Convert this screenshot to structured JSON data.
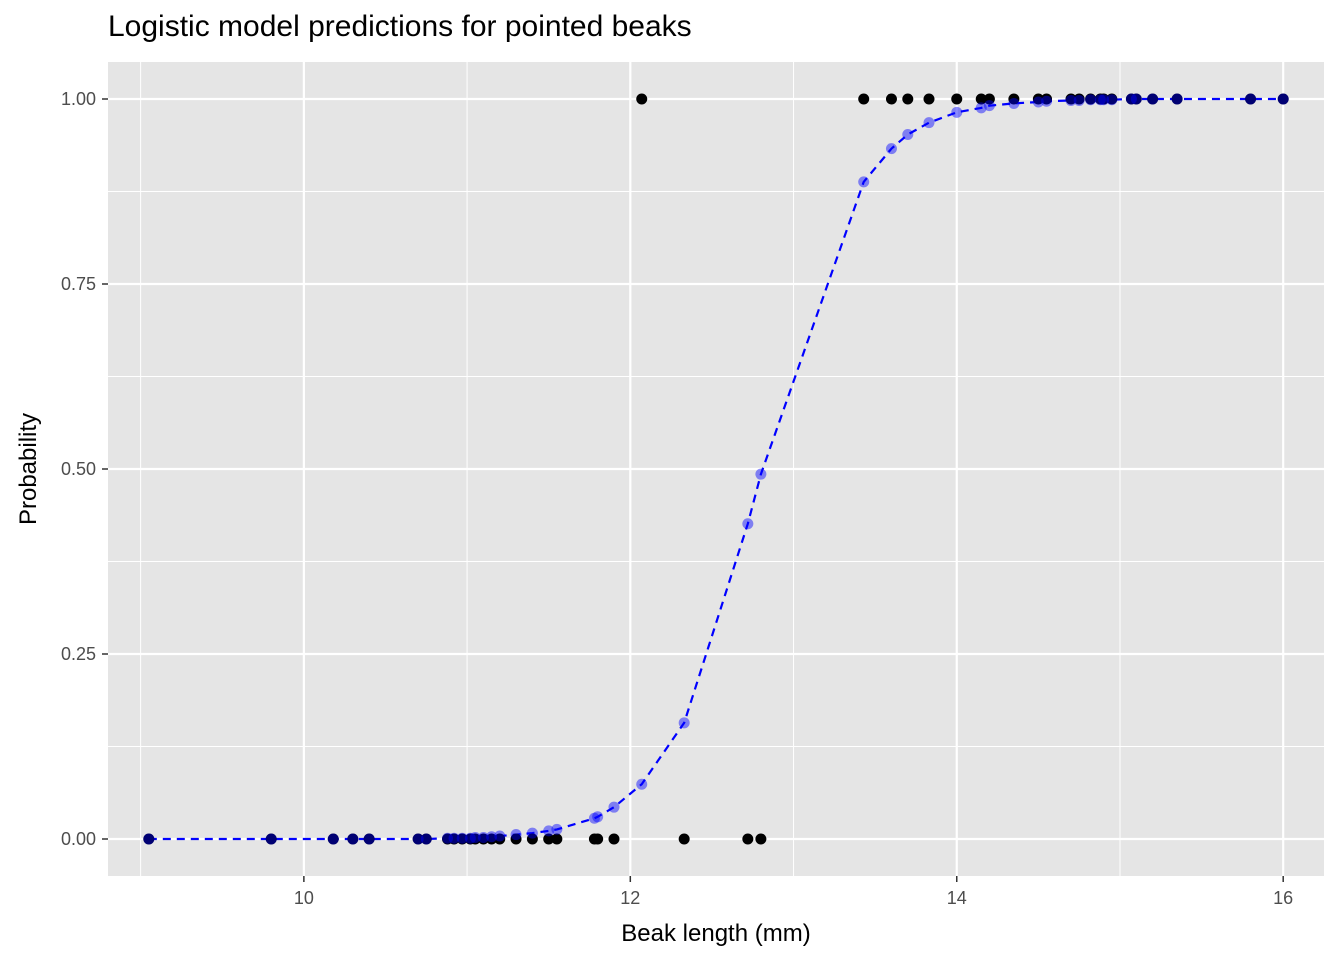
{
  "chart_data": {
    "type": "scatter",
    "title": "Logistic model predictions for pointed beaks",
    "xlabel": "Beak length (mm)",
    "ylabel": "Probability",
    "xlim": [
      8.8,
      16.25
    ],
    "ylim": [
      -0.05,
      1.05
    ],
    "x_ticks": [
      10,
      12,
      14,
      16
    ],
    "x_tick_labels": [
      "10",
      "12",
      "14",
      "16"
    ],
    "y_ticks": [
      0,
      0.25,
      0.5,
      0.75,
      1
    ],
    "y_tick_labels": [
      "0.00",
      "0.25",
      "0.50",
      "0.75",
      "1.00"
    ],
    "grid": true,
    "legend": "none",
    "colors": {
      "panel": "#e5e5e5",
      "grid": "#ffffff",
      "observed": "#000000",
      "predicted": "#0000ff"
    },
    "series": [
      {
        "kind": "observed",
        "points": [
          [
            9.05,
            0
          ],
          [
            9.8,
            0
          ],
          [
            10.18,
            0
          ],
          [
            10.3,
            0
          ],
          [
            10.4,
            0
          ],
          [
            10.7,
            0
          ],
          [
            10.75,
            0
          ],
          [
            10.88,
            0
          ],
          [
            10.92,
            0
          ],
          [
            10.97,
            0
          ],
          [
            11.02,
            0
          ],
          [
            11.05,
            0
          ],
          [
            11.1,
            0
          ],
          [
            11.15,
            0
          ],
          [
            11.2,
            0
          ],
          [
            11.3,
            0
          ],
          [
            11.4,
            0
          ],
          [
            11.5,
            0
          ],
          [
            11.55,
            0
          ],
          [
            11.78,
            0
          ],
          [
            11.8,
            0
          ],
          [
            11.9,
            0
          ],
          [
            12.33,
            0
          ],
          [
            12.72,
            0
          ],
          [
            12.8,
            0
          ],
          [
            12.07,
            1
          ],
          [
            13.43,
            1
          ],
          [
            13.6,
            1
          ],
          [
            13.7,
            1
          ],
          [
            13.83,
            1
          ],
          [
            14.0,
            1
          ],
          [
            14.15,
            1
          ],
          [
            14.2,
            1
          ],
          [
            14.35,
            1
          ],
          [
            14.5,
            1
          ],
          [
            14.55,
            1
          ],
          [
            14.7,
            1
          ],
          [
            14.75,
            1
          ],
          [
            14.82,
            1
          ],
          [
            14.88,
            1
          ],
          [
            14.9,
            1
          ],
          [
            14.95,
            1
          ],
          [
            15.07,
            1
          ],
          [
            15.1,
            1
          ],
          [
            15.2,
            1
          ],
          [
            15.35,
            1
          ],
          [
            15.8,
            1
          ],
          [
            16.0,
            1
          ]
        ]
      },
      {
        "kind": "predicted",
        "points": [
          [
            9.05,
            0.0
          ],
          [
            9.8,
            0.0
          ],
          [
            10.18,
            0.0
          ],
          [
            10.3,
            0.0
          ],
          [
            10.4,
            0.0
          ],
          [
            10.7,
            0.0
          ],
          [
            10.75,
            0.0
          ],
          [
            10.88,
            0.001
          ],
          [
            10.92,
            0.001
          ],
          [
            10.97,
            0.001
          ],
          [
            11.02,
            0.001
          ],
          [
            11.05,
            0.002
          ],
          [
            11.1,
            0.002
          ],
          [
            11.15,
            0.003
          ],
          [
            11.2,
            0.004
          ],
          [
            11.3,
            0.006
          ],
          [
            11.4,
            0.008
          ],
          [
            11.5,
            0.011
          ],
          [
            11.55,
            0.013
          ],
          [
            11.78,
            0.028
          ],
          [
            11.8,
            0.03
          ],
          [
            11.9,
            0.043
          ],
          [
            12.07,
            0.074
          ],
          [
            12.33,
            0.157
          ],
          [
            12.72,
            0.426
          ],
          [
            12.8,
            0.493
          ],
          [
            13.43,
            0.888
          ],
          [
            13.6,
            0.933
          ],
          [
            13.7,
            0.952
          ],
          [
            13.83,
            0.968
          ],
          [
            14.0,
            0.982
          ],
          [
            14.15,
            0.988
          ],
          [
            14.2,
            0.991
          ],
          [
            14.35,
            0.994
          ],
          [
            14.5,
            0.996
          ],
          [
            14.55,
            0.997
          ],
          [
            14.7,
            0.998
          ],
          [
            14.75,
            0.998
          ],
          [
            14.82,
            0.999
          ],
          [
            14.88,
            0.999
          ],
          [
            14.9,
            0.999
          ],
          [
            14.95,
            0.999
          ],
          [
            15.07,
            1.0
          ],
          [
            15.1,
            1.0
          ],
          [
            15.2,
            1.0
          ],
          [
            15.35,
            1.0
          ],
          [
            15.8,
            1.0
          ],
          [
            16.0,
            1.0
          ]
        ]
      }
    ]
  }
}
